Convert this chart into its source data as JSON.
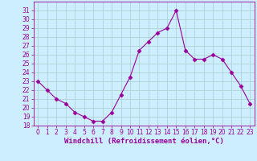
{
  "x": [
    0,
    1,
    2,
    3,
    4,
    5,
    6,
    7,
    8,
    9,
    10,
    11,
    12,
    13,
    14,
    15,
    16,
    17,
    18,
    19,
    20,
    21,
    22,
    23
  ],
  "y": [
    23.0,
    22.0,
    21.0,
    20.5,
    19.5,
    19.0,
    18.5,
    18.5,
    19.5,
    21.5,
    23.5,
    26.5,
    27.5,
    28.5,
    29.0,
    31.0,
    26.5,
    25.5,
    25.5,
    26.0,
    25.5,
    24.0,
    22.5,
    20.5
  ],
  "line_color": "#990099",
  "marker": "D",
  "marker_size": 2.5,
  "bg_color": "#cceeff",
  "grid_color": "#aacccc",
  "xlabel": "Windchill (Refroidissement éolien,°C)",
  "ylabel": "",
  "ylim": [
    18,
    32
  ],
  "xlim": [
    -0.5,
    23.5
  ],
  "yticks": [
    18,
    19,
    20,
    21,
    22,
    23,
    24,
    25,
    26,
    27,
    28,
    29,
    30,
    31
  ],
  "xticks": [
    0,
    1,
    2,
    3,
    4,
    5,
    6,
    7,
    8,
    9,
    10,
    11,
    12,
    13,
    14,
    15,
    16,
    17,
    18,
    19,
    20,
    21,
    22,
    23
  ],
  "tick_color": "#990099",
  "label_color": "#990099",
  "spine_color": "#990099",
  "tick_fontsize": 5.5,
  "xlabel_fontsize": 6.5
}
